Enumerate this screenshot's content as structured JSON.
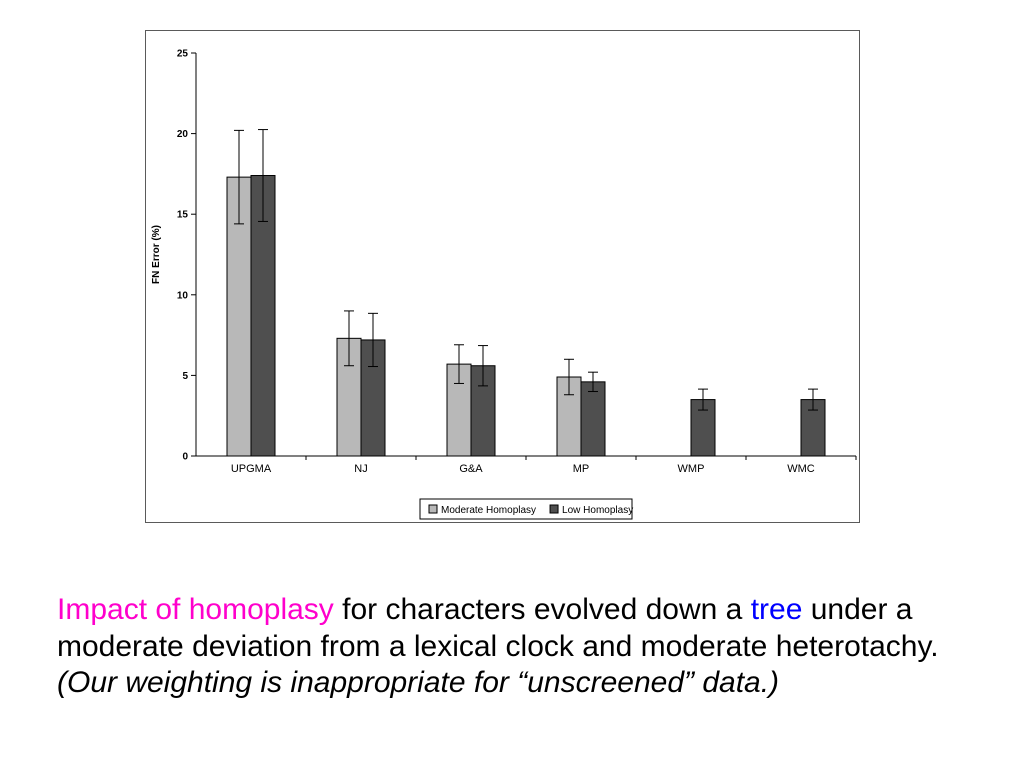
{
  "chart_data": {
    "type": "bar",
    "title": "",
    "xlabel": "",
    "ylabel": "FN Error (%)",
    "ylim": [
      0,
      25
    ],
    "yticks": [
      0,
      5,
      10,
      15,
      20,
      25
    ],
    "grid": false,
    "legend_position": "bottom-center",
    "categories": [
      "UPGMA",
      "NJ",
      "G&A",
      "MP",
      "WMP",
      "WMC"
    ],
    "series": [
      {
        "name": "Moderate Homoplasy",
        "color": "#b8b8b8",
        "values": [
          17.3,
          7.3,
          5.7,
          4.9,
          null,
          null
        ],
        "errors": [
          2.9,
          1.7,
          1.2,
          1.1,
          null,
          null
        ]
      },
      {
        "name": "Low Homoplasy",
        "color": "#4f4f4f",
        "values": [
          17.4,
          7.2,
          5.6,
          4.6,
          3.5,
          3.5
        ],
        "errors": [
          2.85,
          1.65,
          1.25,
          0.6,
          0.65,
          0.65
        ]
      }
    ]
  },
  "caption": {
    "colors": {
      "highlight_magenta": "#ff00cc",
      "highlight_blue": "#0000ff",
      "body": "#000000"
    },
    "segments": [
      {
        "text": "Impact of homoplasy",
        "color": "#ff00cc",
        "style": "normal"
      },
      {
        "text": " for characters evolved down a ",
        "color": "#000000",
        "style": "normal"
      },
      {
        "text": "tree",
        "color": "#0000ff",
        "style": "normal"
      },
      {
        "text": " under a moderate deviation from a lexical clock and moderate heterotachy.",
        "color": "#000000",
        "style": "normal"
      },
      {
        "text": "  (Our weighting is inappropriate for “unscreened” data.)",
        "color": "#000000",
        "style": "italic"
      }
    ]
  }
}
